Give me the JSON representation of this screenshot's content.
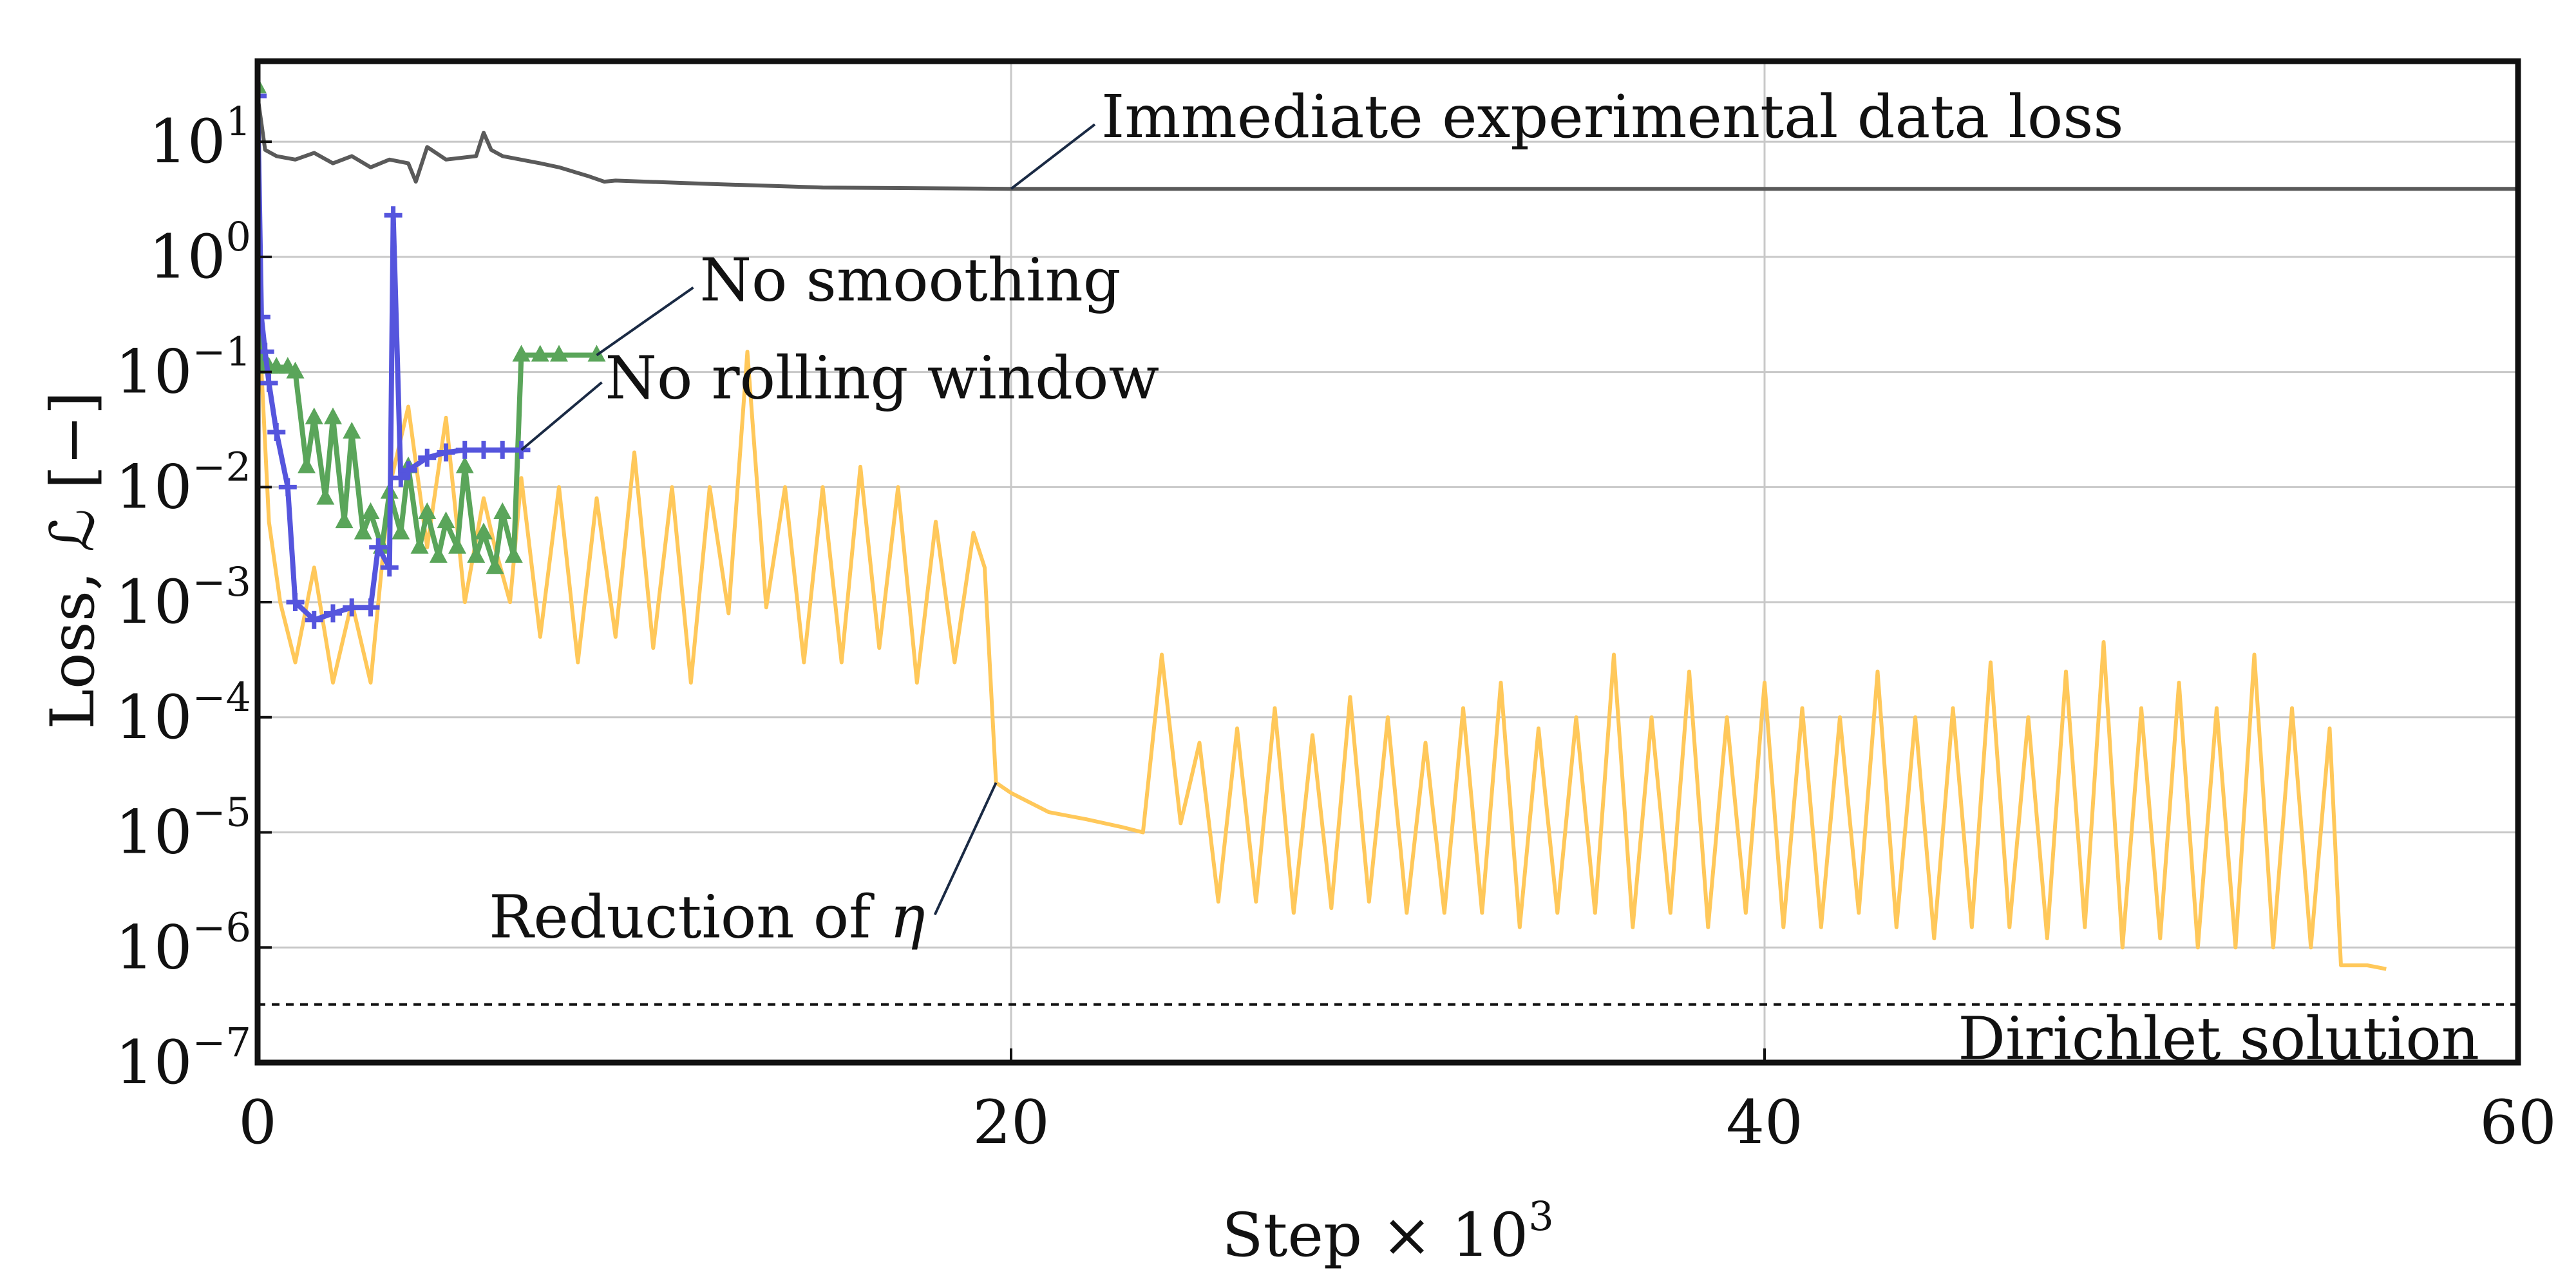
{
  "chart_data": {
    "type": "line",
    "title": "",
    "xlabel": "Step × 10",
    "xlabel_power": "3",
    "ylabel": "Loss, ℒ [−]",
    "xlim": [
      0,
      60
    ],
    "ylim_log10": [
      -7,
      1.7
    ],
    "yscale": "log",
    "grid": true,
    "legend": "none",
    "x_ticks": [
      0,
      20,
      40,
      60
    ],
    "x_tick_labels": [
      "0",
      "20",
      "40",
      "60"
    ],
    "y_ticks": [
      1,
      0,
      -1,
      -2,
      -3,
      -4,
      -5,
      -6,
      -7
    ],
    "colors": {
      "axis": "#111111",
      "grid": "#c8c8c8",
      "data_loss": "#5a5a5a",
      "no_smoothing": "#5aa55a",
      "no_rolling_window": "#5555dd",
      "eta_reduction": "#ffc85a",
      "dirichlet": "#111111",
      "annotation_line": "#1a2a44"
    },
    "series": [
      {
        "key": "data_loss",
        "marker": "none",
        "x": [
          0,
          0.2,
          0.5,
          1.0,
          1.5,
          2.0,
          2.5,
          3.0,
          3.5,
          4.0,
          4.2,
          4.5,
          5.0,
          5.8,
          6.0,
          6.2,
          6.5,
          7.5,
          8.0,
          8.8,
          9.2,
          9.5,
          12,
          15,
          20,
          30,
          40,
          50,
          60
        ],
        "y": [
          25,
          8.5,
          7.5,
          7.0,
          8.0,
          6.5,
          7.5,
          6.0,
          7.0,
          6.5,
          4.5,
          9.0,
          7.0,
          7.5,
          12.0,
          8.5,
          7.5,
          6.5,
          6.0,
          5.0,
          4.5,
          4.6,
          4.3,
          4.0,
          3.9,
          3.9,
          3.9,
          3.9,
          3.9
        ]
      },
      {
        "key": "no_smoothing",
        "marker": "triangle",
        "x": [
          0,
          0.1,
          0.3,
          0.5,
          0.8,
          1.0,
          1.3,
          1.5,
          1.8,
          2.0,
          2.3,
          2.5,
          2.8,
          3.0,
          3.3,
          3.5,
          3.8,
          4.0,
          4.3,
          4.5,
          4.8,
          5.0,
          5.3,
          5.5,
          5.8,
          6.0,
          6.3,
          6.5,
          6.8,
          7.0,
          7.5,
          8.0,
          9.0
        ],
        "y": [
          30,
          0.11,
          0.11,
          0.11,
          0.11,
          0.1,
          0.015,
          0.04,
          0.008,
          0.04,
          0.005,
          0.03,
          0.004,
          0.006,
          0.003,
          0.009,
          0.004,
          0.015,
          0.003,
          0.006,
          0.0025,
          0.005,
          0.003,
          0.015,
          0.0025,
          0.004,
          0.002,
          0.006,
          0.0025,
          0.14,
          0.14,
          0.14,
          0.14
        ]
      },
      {
        "key": "no_rolling_window",
        "marker": "plus",
        "x": [
          0,
          0.1,
          0.2,
          0.3,
          0.5,
          0.8,
          1.0,
          1.5,
          2.0,
          2.5,
          3.0,
          3.2,
          3.5,
          3.6,
          3.8,
          4.0,
          4.5,
          5.0,
          5.5,
          6.0,
          6.5,
          7.0
        ],
        "y": [
          25,
          0.3,
          0.15,
          0.08,
          0.03,
          0.01,
          0.001,
          0.0007,
          0.0008,
          0.0009,
          0.0009,
          0.003,
          0.002,
          2.3,
          0.012,
          0.014,
          0.018,
          0.02,
          0.021,
          0.021,
          0.021,
          0.021
        ]
      },
      {
        "key": "eta_reduction",
        "marker": "none",
        "x": [
          0,
          0.3,
          0.6,
          1.0,
          1.5,
          2.0,
          2.5,
          3.0,
          3.5,
          4.0,
          4.5,
          5.0,
          5.5,
          6.0,
          6.3,
          6.7,
          7.0,
          7.5,
          8.0,
          8.5,
          9.0,
          9.5,
          10.0,
          10.5,
          11.0,
          11.5,
          12.0,
          12.5,
          13.0,
          13.5,
          14.0,
          14.5,
          15.0,
          15.5,
          16.0,
          16.5,
          17.0,
          17.5,
          18.0,
          18.5,
          19.0,
          19.3,
          19.6,
          20.0,
          21.0,
          22.0,
          23.0,
          23.5,
          24.0,
          24.5,
          25.0,
          25.5,
          26.0,
          26.5,
          27.0,
          27.5,
          28.0,
          28.5,
          29.0,
          29.5,
          30.0,
          30.5,
          31.0,
          31.5,
          32.0,
          32.5,
          33.0,
          33.5,
          34.0,
          34.5,
          35.0,
          35.5,
          36.0,
          36.5,
          37.0,
          37.5,
          38.0,
          38.5,
          39.0,
          39.5,
          40.0,
          40.5,
          41.0,
          41.5,
          42.0,
          42.5,
          43.0,
          43.5,
          44.0,
          44.5,
          45.0,
          45.5,
          46.0,
          46.5,
          47.0,
          47.5,
          48.0,
          48.5,
          49.0,
          49.5,
          50.0,
          50.5,
          51.0,
          51.5,
          52.0,
          52.5,
          53.0,
          53.5,
          54.0,
          54.5,
          55.0,
          55.3,
          56.0,
          56.5
        ],
        "y": [
          0.5,
          0.005,
          0.001,
          0.0003,
          0.002,
          0.0002,
          0.001,
          0.0002,
          0.01,
          0.05,
          0.003,
          0.04,
          0.001,
          0.008,
          0.003,
          0.001,
          0.012,
          0.0005,
          0.01,
          0.0003,
          0.008,
          0.0005,
          0.02,
          0.0004,
          0.01,
          0.0002,
          0.01,
          0.0008,
          0.15,
          0.0009,
          0.01,
          0.0003,
          0.01,
          0.0003,
          0.015,
          0.0004,
          0.01,
          0.0002,
          0.005,
          0.0003,
          0.004,
          0.002,
          2.7e-05,
          2.2e-05,
          1.5e-05,
          1.3e-05,
          1.1e-05,
          1e-05,
          0.00035,
          1.2e-05,
          6e-05,
          2.5e-06,
          8e-05,
          2.5e-06,
          0.00012,
          2e-06,
          7e-05,
          2.2e-06,
          0.00015,
          2.5e-06,
          0.0001,
          2e-06,
          6e-05,
          2e-06,
          0.00012,
          2e-06,
          0.0002,
          1.5e-06,
          8e-05,
          2e-06,
          0.0001,
          2e-06,
          0.00035,
          1.5e-06,
          0.0001,
          2e-06,
          0.00025,
          1.5e-06,
          0.0001,
          2e-06,
          0.0002,
          1.5e-06,
          0.00012,
          1.5e-06,
          0.0001,
          2e-06,
          0.00025,
          1.5e-06,
          0.0001,
          1.2e-06,
          0.00012,
          1.5e-06,
          0.0003,
          1.5e-06,
          0.0001,
          1.2e-06,
          0.00025,
          1.5e-06,
          0.00045,
          1e-06,
          0.00012,
          1.2e-06,
          0.0002,
          1e-06,
          0.00012,
          1e-06,
          0.00035,
          1e-06,
          0.00012,
          1e-06,
          8e-05,
          7e-07,
          7e-07,
          6.5e-07
        ]
      }
    ],
    "reference_line": {
      "key": "dirichlet",
      "y": 3.2e-07,
      "style": "dashed",
      "label": "Dirichlet solution"
    },
    "annotations": [
      {
        "key": "data_loss",
        "text": "Immediate experimental data loss",
        "point_x": 20,
        "point_y": 3.9
      },
      {
        "key": "no_smoothing",
        "text": "No smoothing",
        "point_x": 9.0,
        "point_y": 0.14
      },
      {
        "key": "no_rolling_window",
        "text": "No rolling window",
        "point_x": 7.0,
        "point_y": 0.021
      },
      {
        "key": "eta_reduction",
        "text": "Reduction of ",
        "text_symbol": "η",
        "point_x": 19.6,
        "point_y": 2.7e-05
      }
    ]
  }
}
